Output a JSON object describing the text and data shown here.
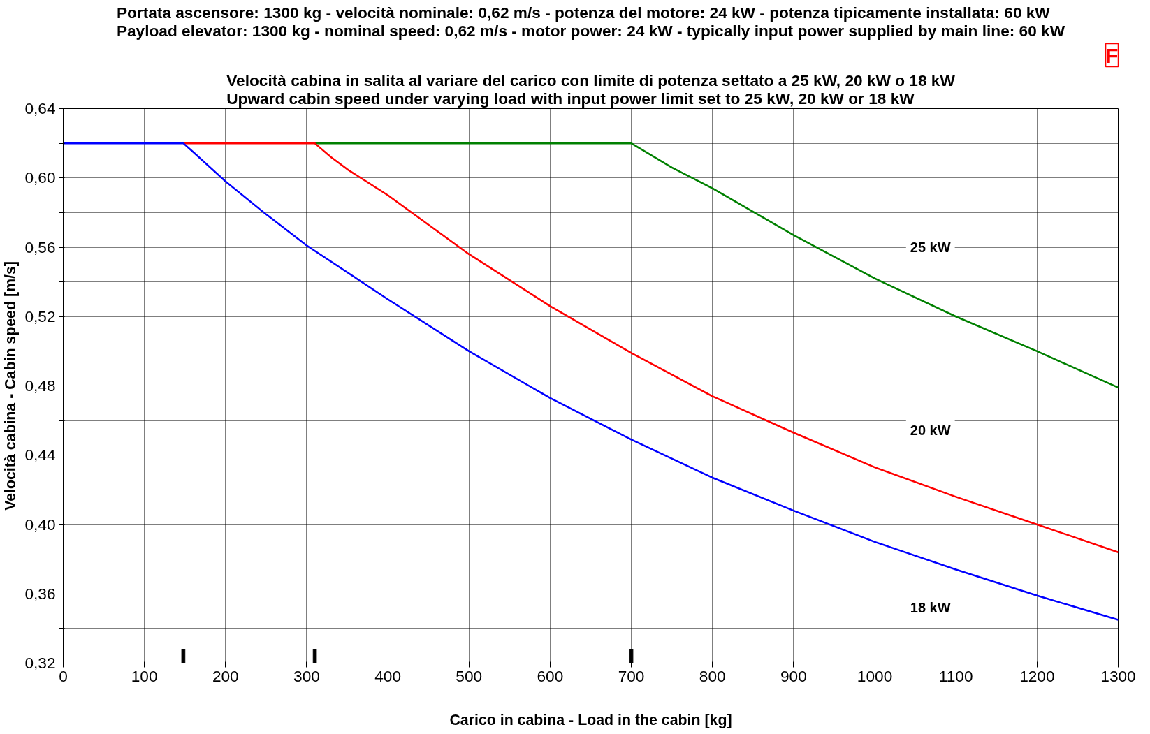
{
  "chart_data": {
    "type": "line",
    "title": "Portata ascensore: 1300 kg - velocità nominale: 0,62 m/s - potenza del motore: 24 kW - potenza tipicamente installata: 60 kW\nPayload elevator: 1300 kg - nominal speed: 0,62 m/s - motor power: 24 kW - typically input power supplied by main line: 60 kW",
    "subtitle": "Velocità cabina in salita al variare del carico con limite di potenza settato a 25 kW, 20 kW o 18 kW\nUpward cabin speed under varying load with input power limit set to 25 kW, 20 kW or 18 kW",
    "xlabel": "Carico in cabina - Load in the cabin [kg]",
    "ylabel": "Velocità cabina - Cabin speed [m/s]",
    "xlim": [
      0,
      1300
    ],
    "xticks": [
      0,
      100,
      200,
      300,
      400,
      500,
      600,
      700,
      800,
      900,
      1000,
      1100,
      1200,
      1300
    ],
    "ylim": [
      0.32,
      0.64
    ],
    "yticks": [
      {
        "value": 0.32,
        "label": "0,32"
      },
      {
        "value": 0.34,
        "label": null
      },
      {
        "value": 0.36,
        "label": "0,36"
      },
      {
        "value": 0.38,
        "label": null
      },
      {
        "value": 0.4,
        "label": "0,40"
      },
      {
        "value": 0.42,
        "label": null
      },
      {
        "value": 0.44,
        "label": "0,44"
      },
      {
        "value": 0.46,
        "label": null
      },
      {
        "value": 0.48,
        "label": "0,48"
      },
      {
        "value": 0.5,
        "label": null
      },
      {
        "value": 0.52,
        "label": "0,52"
      },
      {
        "value": 0.54,
        "label": null
      },
      {
        "value": 0.56,
        "label": "0,56"
      },
      {
        "value": 0.58,
        "label": null
      },
      {
        "value": 0.6,
        "label": "0,60"
      },
      {
        "value": 0.62,
        "label": null
      },
      {
        "value": 0.64,
        "label": "0,64"
      }
    ],
    "grid": true,
    "marker": "none",
    "line_style": "solid",
    "series": [
      {
        "color": "#0000ff",
        "x": [
          0,
          148,
          160,
          200,
          250,
          300,
          400,
          500,
          600,
          700,
          800,
          900,
          1000,
          1100,
          1200,
          1300
        ],
        "values": [
          0.62,
          0.62,
          0.615,
          0.598,
          0.579,
          0.561,
          0.53,
          0.5,
          0.473,
          0.449,
          0.427,
          0.408,
          0.39,
          0.374,
          0.359,
          0.345
        ]
      },
      {
        "color": "#ff0000",
        "x": [
          148,
          310,
          315,
          330,
          350,
          400,
          500,
          600,
          700,
          800,
          900,
          1000,
          1100,
          1200,
          1300
        ],
        "values": [
          0.62,
          0.62,
          0.618,
          0.612,
          0.605,
          0.59,
          0.556,
          0.526,
          0.499,
          0.474,
          0.453,
          0.433,
          0.416,
          0.4,
          0.384
        ]
      },
      {
        "color": "#008000",
        "x": [
          310,
          700,
          750,
          800,
          900,
          1000,
          1100,
          1200,
          1300
        ],
        "values": [
          0.62,
          0.62,
          0.606,
          0.594,
          0.567,
          0.542,
          0.52,
          0.5,
          0.479
        ]
      },
      {
        "type": "bar",
        "color": "#000000",
        "x": [
          148,
          310,
          700
        ],
        "base": [
          0.32,
          0.32,
          0.32
        ],
        "values": [
          0.008,
          0.008,
          0.008
        ]
      }
    ],
    "annotations": [
      "25 kW",
      "20 kW",
      "18 kW",
      "F"
    ]
  }
}
